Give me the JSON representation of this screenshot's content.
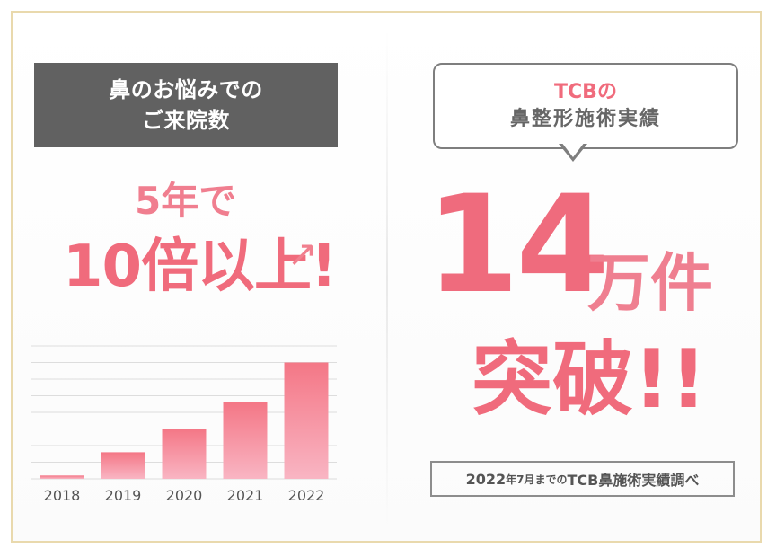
{
  "left_panel": {
    "header_lines": [
      "鼻のお悩みでの",
      "ご来院数"
    ],
    "growth_text": {
      "line1": "5年で",
      "line2": "10倍以上!"
    }
  },
  "right_panel": {
    "bubble_lines": [
      "TCBの",
      "鼻整形施術実績"
    ],
    "big_number": "14",
    "unit": "万件",
    "breakthrough": "突破!!",
    "note": {
      "year": "2022",
      "mid": "年7月までの",
      "end": "TCB鼻施術実績調べ"
    }
  },
  "chart_data": {
    "type": "bar",
    "categories": [
      "2018",
      "2019",
      "2020",
      "2021",
      "2022"
    ],
    "values": [
      1,
      8,
      15,
      23,
      35
    ],
    "ylim": [
      0,
      40
    ],
    "grid": true
  },
  "colors": {
    "pink_start": "#f9b5c3",
    "pink_end": "#f47786",
    "accent": "#ef6b7d",
    "header_bg": "#616161",
    "frame_gold": "#e9d9ad"
  }
}
